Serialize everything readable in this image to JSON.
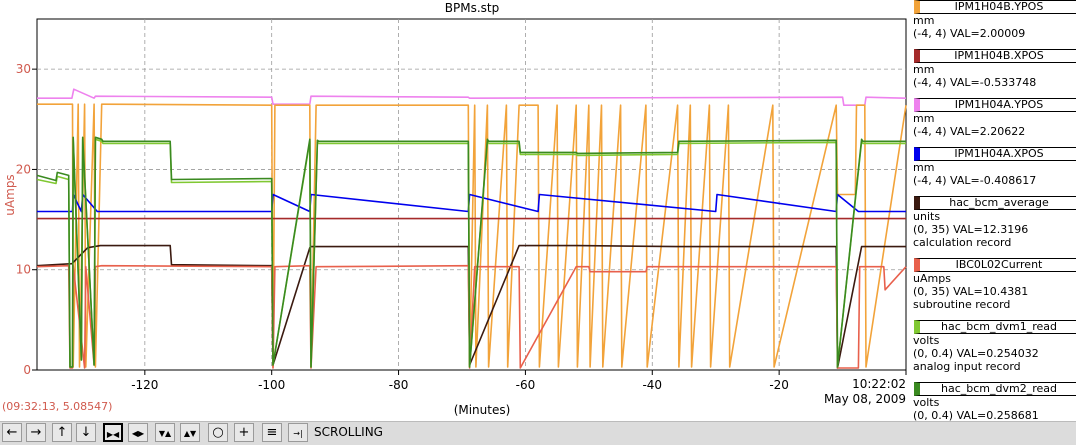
{
  "chart_data": {
    "type": "line",
    "title": "BPMs.stp",
    "xlabel": "(Minutes)",
    "ylabel": "uAmps",
    "xlim": [
      -137,
      0
    ],
    "ylim": [
      0,
      35
    ],
    "grid": true,
    "x_tick_labels": [
      "-120",
      "-100",
      "-80",
      "-60",
      "-40",
      "-20"
    ],
    "x_ticks": [
      -120,
      -100,
      -80,
      -60,
      -40,
      -20
    ],
    "y_ticks": [
      0,
      10,
      20,
      30
    ],
    "y_tick_labels": [
      "0",
      "10",
      "20",
      "30"
    ],
    "end_time": "10:22:02",
    "end_date": "May 08, 2009",
    "series": [
      {
        "name": "IPM1H04A.YPOS",
        "color": "#ee82ee",
        "x": [
          -137,
          -131.5,
          -131.2,
          -128,
          -127.8,
          -100,
          -99.8,
          -94,
          -93.8,
          -69,
          -68.8,
          -10,
          -9.8,
          -6.5,
          -6.3,
          0
        ],
        "y": [
          27.1,
          27.1,
          28.0,
          27.1,
          27.3,
          27.2,
          26.5,
          26.5,
          27.3,
          27.2,
          27.1,
          27.2,
          26.4,
          26.4,
          27.2,
          27.1
        ]
      },
      {
        "name": "IPM1H04B.YPOS",
        "color": "#f2a33a",
        "x": [
          -137,
          -131.4,
          -131.3,
          -130.5,
          -130.3,
          -129.5,
          -129.3,
          -128.0,
          -127.8,
          -126.8,
          -126.6,
          -100,
          -99.8,
          -99.5,
          -99.3,
          -94,
          -93.8,
          -93.0,
          -92.8,
          -69,
          -68.8,
          -68,
          -67.8,
          -66,
          -65.8,
          -63,
          -62.8,
          -61,
          -60.8,
          -58,
          -57.8,
          -55,
          -54.8,
          -52,
          -51.8,
          -50,
          -49.8,
          -48,
          -47.8,
          -45,
          -44.8,
          -41,
          -40.8,
          -36,
          -35.8,
          -34,
          -33.8,
          -31,
          -30.8,
          -28,
          -27.8,
          -21,
          -20.8,
          -11,
          -10.8,
          -8,
          -7.8,
          -6.5,
          -6.3,
          0
        ],
        "y": [
          26.5,
          26.5,
          0.3,
          26.5,
          0.3,
          26.5,
          0.3,
          26.5,
          0.3,
          26.5,
          26.5,
          26.4,
          0.3,
          26.4,
          26.4,
          26.4,
          0.3,
          26.4,
          26.4,
          26.4,
          0.3,
          26.4,
          0.3,
          26.4,
          0.3,
          26.4,
          0.3,
          26.4,
          26.4,
          26.4,
          0.3,
          26.4,
          0.3,
          26.4,
          0.3,
          26.4,
          0.3,
          26.4,
          0.3,
          26.4,
          0.3,
          26.4,
          0.3,
          26.4,
          0.3,
          26.4,
          0.3,
          26.4,
          0.3,
          26.4,
          0.3,
          26.4,
          0.3,
          26.4,
          17.5,
          17.5,
          26.4,
          26.4,
          0.3,
          26.4
        ]
      },
      {
        "name": "IPM1H04B.XPOS",
        "color": "#a52a2a",
        "x": [
          -137,
          0
        ],
        "y": [
          15.1,
          15.1
        ]
      },
      {
        "name": "IPM1H04A.XPOS",
        "color": "#0000ee",
        "x": [
          -137,
          -131.4,
          -131.3,
          -130.0,
          -129.8,
          -127.5,
          -127.3,
          -100,
          -99.8,
          -94,
          -93.8,
          -69,
          -68.8,
          -58,
          -57.8,
          -30,
          -29.8,
          -11,
          -10.8,
          -7.5,
          -7.3,
          0
        ],
        "y": [
          15.8,
          15.8,
          17.5,
          15.8,
          17.5,
          15.8,
          15.8,
          15.8,
          17.5,
          15.8,
          17.5,
          15.8,
          17.5,
          15.8,
          17.5,
          15.8,
          17.5,
          15.8,
          17.5,
          15.8,
          15.8,
          15.8
        ]
      },
      {
        "name": "hac_bcm_average",
        "color": "#3b1a10",
        "x": [
          -137,
          -131.5,
          -129,
          -127,
          -126.8,
          -116,
          -115.8,
          -100,
          -99.8,
          -94,
          -93.8,
          -69,
          -68.8,
          -61,
          -60.8,
          -52,
          -51.8,
          -36,
          -35.8,
          -11,
          -10.8,
          -7,
          -6.8,
          0
        ],
        "y": [
          10.4,
          10.6,
          12.2,
          12.4,
          12.4,
          12.4,
          10.5,
          10.4,
          0.5,
          12.2,
          12.3,
          12.3,
          0.5,
          12.4,
          12.4,
          12.4,
          12.4,
          12.3,
          12.3,
          12.3,
          0.2,
          12.3,
          12.3,
          12.3
        ]
      },
      {
        "name": "IBC0L02Current",
        "color": "#e8604c",
        "x": [
          -137,
          -132,
          -131.8,
          -131.4,
          -131.3,
          -129.5,
          -129.3,
          -128,
          -127.8,
          -126.8,
          -100,
          -99.8,
          -99.5,
          -94,
          -93.8,
          -93,
          -69,
          -68.8,
          -68,
          -61,
          -60.8,
          -52,
          -51.8,
          -50,
          -49.8,
          -41,
          -40.8,
          -36,
          -35.8,
          -11,
          -10.8,
          -7.5,
          -7.3,
          -3.5,
          -3.3,
          0
        ],
        "y": [
          10.3,
          10.4,
          0.2,
          0.2,
          10.4,
          0.2,
          10.3,
          0.5,
          10.3,
          10.4,
          10.3,
          0.2,
          10.3,
          10.4,
          0.2,
          10.3,
          10.4,
          0.2,
          10.3,
          10.3,
          0.2,
          10.3,
          10.3,
          10.3,
          9.8,
          9.8,
          10.3,
          10.3,
          10.3,
          10.3,
          0.2,
          0.2,
          10.3,
          10.3,
          8.0,
          10.3
        ]
      },
      {
        "name": "hac_bcm_dvm1_read",
        "color": "#80c832",
        "x": [
          -137,
          -134,
          -133.8,
          -132,
          -131.8,
          -131.4,
          -131.3,
          -130,
          -129.8,
          -128,
          -127.8,
          -126.8,
          -126.6,
          -116,
          -115.8,
          -100,
          -99.8,
          -94,
          -93.8,
          -92.8,
          -92.6,
          -69,
          -68.8,
          -66,
          -65.8,
          -61,
          -60.8,
          -52,
          -51.8,
          -36,
          -35.8,
          -11,
          -10.8,
          -7,
          -6.8,
          0
        ],
        "y": [
          19.0,
          18.6,
          19.3,
          19.0,
          0.3,
          0.3,
          23.0,
          1.0,
          23.0,
          0.5,
          23.0,
          22.8,
          22.6,
          22.6,
          18.7,
          18.8,
          0.5,
          22.8,
          0.3,
          22.7,
          22.6,
          22.6,
          0.3,
          22.8,
          22.6,
          22.6,
          21.5,
          21.5,
          21.4,
          21.5,
          22.6,
          22.7,
          0.3,
          22.8,
          22.6,
          22.6
        ]
      },
      {
        "name": "hac_bcm_dvm2_read",
        "color": "#3a8a20",
        "x": [
          -137,
          -134,
          -133.8,
          -132,
          -131.8,
          -131.4,
          -131.3,
          -130,
          -129.8,
          -128,
          -127.8,
          -126.8,
          -126.6,
          -116,
          -115.8,
          -100,
          -99.8,
          -94,
          -93.8,
          -92.8,
          -92.6,
          -69,
          -68.8,
          -66,
          -65.8,
          -61,
          -60.8,
          -52,
          -51.8,
          -36,
          -35.8,
          -11,
          -10.8,
          -7,
          -6.8,
          0
        ],
        "y": [
          19.4,
          18.9,
          19.7,
          19.4,
          0.3,
          0.3,
          23.2,
          1.0,
          23.2,
          0.5,
          23.2,
          23.0,
          22.8,
          22.8,
          19.0,
          19.1,
          0.5,
          23.0,
          0.3,
          22.9,
          22.8,
          22.8,
          0.3,
          23.0,
          22.8,
          22.8,
          21.7,
          21.7,
          21.6,
          21.7,
          22.8,
          22.9,
          0.3,
          23.0,
          22.8,
          22.8
        ]
      }
    ]
  },
  "legend": [
    {
      "name": "IPM1H04B.YPOS",
      "color": "#f2a33a",
      "lines": [
        "mm",
        "(-4, 4) VAL=2.00009"
      ]
    },
    {
      "name": "IPM1H04B.XPOS",
      "color": "#a52a2a",
      "lines": [
        "mm",
        "(-4, 4) VAL=-0.533748"
      ]
    },
    {
      "name": "IPM1H04A.YPOS",
      "color": "#ee82ee",
      "lines": [
        "mm",
        "(-4, 4) VAL=2.20622"
      ]
    },
    {
      "name": "IPM1H04A.XPOS",
      "color": "#0000ee",
      "lines": [
        "mm",
        "(-4, 4) VAL=-0.408617"
      ]
    },
    {
      "name": "hac_bcm_average",
      "color": "#3b1a10",
      "lines": [
        "units",
        "(0, 35) VAL=12.3196",
        "calculation record"
      ]
    },
    {
      "name": "IBC0L02Current",
      "color": "#e8604c",
      "lines": [
        "uAmps",
        "(0, 35) VAL=10.4381",
        "subroutine record"
      ]
    },
    {
      "name": "hac_bcm_dvm1_read",
      "color": "#80c832",
      "lines": [
        "volts",
        "(0, 0.4) VAL=0.254032",
        "analog input record"
      ]
    },
    {
      "name": "hac_bcm_dvm2_read",
      "color": "#3a8a20",
      "lines": [
        "volts",
        "(0, 0.4) VAL=0.258681",
        "analog input record"
      ]
    }
  ],
  "cursor_readout": "(09:32:13, 5.08547)",
  "toolbar": {
    "buttons": [
      {
        "name": "scroll-left-button",
        "icon": "arrow-left-icon",
        "glyph": "←"
      },
      {
        "name": "scroll-right-button",
        "icon": "arrow-right-icon",
        "glyph": "→"
      },
      {
        "name": "scroll-up-button",
        "icon": "arrow-up-icon",
        "glyph": "↑"
      },
      {
        "name": "scroll-down-button",
        "icon": "arrow-down-icon",
        "glyph": "↓"
      },
      {
        "name": "zoom-x-in-button",
        "icon": "zoom-x-in-icon",
        "glyph": "▶◀"
      },
      {
        "name": "zoom-x-out-button",
        "icon": "zoom-x-out-icon",
        "glyph": "◀▶"
      },
      {
        "name": "zoom-y-in-button",
        "icon": "zoom-y-in-icon",
        "glyph": "▼▲"
      },
      {
        "name": "zoom-y-out-button",
        "icon": "zoom-y-out-icon",
        "glyph": "▲▼"
      },
      {
        "name": "zoom-out-button",
        "icon": "zoom-out-icon",
        "glyph": "○"
      },
      {
        "name": "zoom-in-button",
        "icon": "zoom-in-icon",
        "glyph": "+"
      },
      {
        "name": "autoscale-button",
        "icon": "autoscale-icon",
        "glyph": "≡"
      },
      {
        "name": "go-to-end-button",
        "icon": "go-to-end-icon",
        "glyph": "→|"
      }
    ],
    "mode_label": "SCROLLING"
  }
}
